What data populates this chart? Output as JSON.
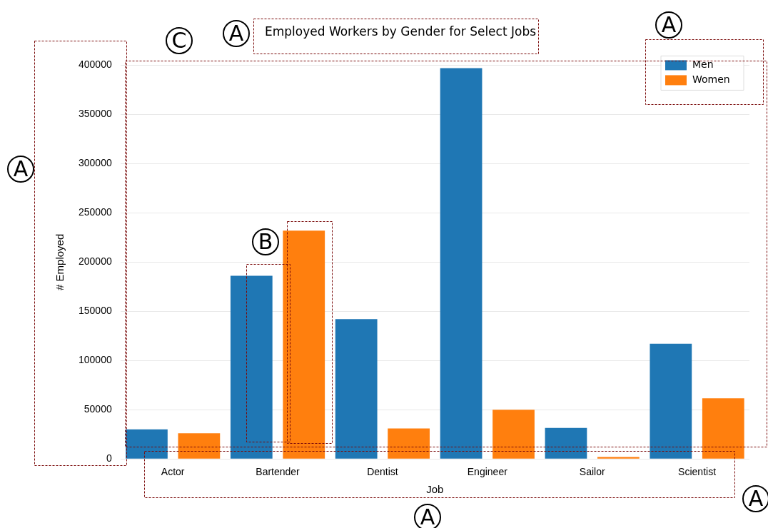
{
  "chart_data": {
    "type": "bar",
    "title": "Employed Workers by Gender for Select Jobs",
    "xlabel": "Job",
    "ylabel": "# Employed",
    "categories": [
      "Actor",
      "Bartender",
      "Dentist",
      "Engineer",
      "Sailor",
      "Scientist"
    ],
    "series": [
      {
        "name": "Men",
        "color": "#1f77b4",
        "values": [
          30000,
          186000,
          142000,
          397000,
          31500,
          117000
        ]
      },
      {
        "name": "Women",
        "color": "#ff7f0e",
        "values": [
          26000,
          232000,
          31000,
          50000,
          2000,
          61500
        ]
      }
    ],
    "ylim": [
      0,
      400000
    ],
    "yticks": [
      0,
      50000,
      100000,
      150000,
      200000,
      250000,
      300000,
      350000,
      400000
    ],
    "grid": "y",
    "legend": "top right",
    "annotations": [
      "A",
      "A",
      "A",
      "A",
      "A",
      "B",
      "C"
    ]
  }
}
